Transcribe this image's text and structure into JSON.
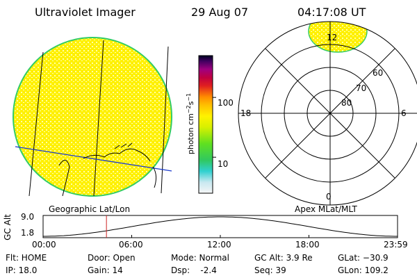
{
  "header": {
    "title": "Ultraviolet Imager",
    "date": "29 Aug 07",
    "time": "04:17:08 UT"
  },
  "colorbar": {
    "label": "photon cm-2s-1",
    "ticks": [
      {
        "value": 100,
        "label": "100"
      },
      {
        "value": 10,
        "label": "10"
      }
    ],
    "scale": "log",
    "range": [
      2.5,
      500
    ]
  },
  "polar": {
    "mlt_labels": {
      "top": "12",
      "left": "18",
      "right": "6",
      "bottom": "0"
    },
    "lat_labels": [
      "60",
      "70",
      "80"
    ]
  },
  "map_labels": {
    "geo": "Geographic Lat/Lon",
    "apex": "Apex MLat/MLT"
  },
  "altitude_plot": {
    "ylabel": "GC Alt",
    "y_ticks": [
      "9.0",
      "1.8"
    ],
    "x_ticks": [
      "00:00",
      "06:00",
      "12:00",
      "18:00",
      "23:59"
    ],
    "current_time_hours": 4.29
  },
  "info": {
    "flt": "Flt: HOME",
    "ip": "IP: 18.0",
    "door": "Door: Open",
    "gain": "Gain: 14",
    "mode": "Mode: Normal",
    "dsp": "Dsp:    -2.4",
    "gcalt": "GC Alt: 3.9 Re",
    "seq": "Seq: 39",
    "glat": "GLat: −30.9",
    "glon": "GLon: 109.2"
  },
  "colors": {
    "disk": "#fff200",
    "disk_edge": "#33cc66",
    "geo_line": "#1a3acc",
    "time_marker": "#cc2222"
  }
}
